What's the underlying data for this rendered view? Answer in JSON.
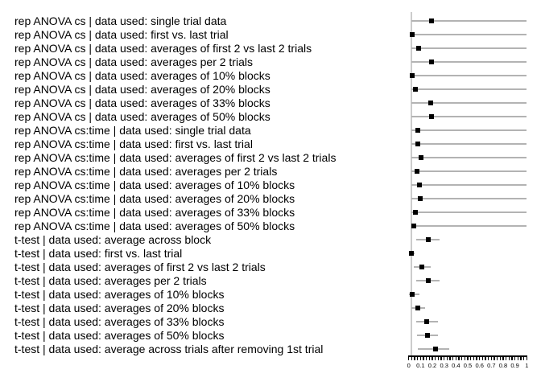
{
  "chart_data": {
    "type": "scatter",
    "subtype": "forest-plot",
    "orientation": "horizontal",
    "title": "",
    "xlabel": "",
    "ylabel": "",
    "xlim": [
      0,
      1
    ],
    "grid": false,
    "legend": "none",
    "x_tick_labels": [
      "0",
      "0.1",
      "0.2",
      "0.3",
      "0.4",
      "0.5",
      "0.6",
      "0.7",
      "0.8",
      "0.9",
      "1"
    ],
    "x_tick_values": [
      0,
      0.1,
      0.2,
      0.3,
      0.4,
      0.5,
      0.6,
      0.7,
      0.8,
      0.9,
      1
    ],
    "minor_tick_step": 0.025,
    "rows": [
      {
        "label": "rep ANOVA cs | data used: single trial data",
        "est": 0.19,
        "lo": 0.02,
        "hi": 1.0
      },
      {
        "label": "rep ANOVA cs | data used: first vs. last trial",
        "est": 0.03,
        "lo": 0.02,
        "hi": 1.0
      },
      {
        "label": "rep ANOVA cs | data used: averages of first 2 vs last 2 trials",
        "est": 0.085,
        "lo": 0.02,
        "hi": 1.0
      },
      {
        "label": "rep ANOVA cs | data used: averages per 2 trials",
        "est": 0.19,
        "lo": 0.02,
        "hi": 1.0
      },
      {
        "label": "rep ANOVA cs | data used: averages of 10% blocks",
        "est": 0.03,
        "lo": 0.02,
        "hi": 1.0
      },
      {
        "label": "rep ANOVA cs | data used: averages of 20% blocks",
        "est": 0.06,
        "lo": 0.02,
        "hi": 1.0
      },
      {
        "label": "rep ANOVA cs | data used: averages of 33% blocks",
        "est": 0.185,
        "lo": 0.02,
        "hi": 1.0
      },
      {
        "label": "rep ANOVA cs | data used: averages of 50% blocks",
        "est": 0.19,
        "lo": 0.02,
        "hi": 1.0
      },
      {
        "label": "rep ANOVA cs:time | data used: single trial data",
        "est": 0.075,
        "lo": 0.02,
        "hi": 1.0
      },
      {
        "label": "rep ANOVA cs:time | data used: first vs. last trial",
        "est": 0.08,
        "lo": 0.02,
        "hi": 1.0
      },
      {
        "label": "rep ANOVA cs:time | data used: averages of first 2 vs last 2 trials",
        "est": 0.105,
        "lo": 0.02,
        "hi": 1.0
      },
      {
        "label": "rep ANOVA cs:time | data used: averages per 2 trials",
        "est": 0.07,
        "lo": 0.02,
        "hi": 1.0
      },
      {
        "label": "rep ANOVA cs:time | data used: averages of 10% blocks",
        "est": 0.09,
        "lo": 0.02,
        "hi": 1.0
      },
      {
        "label": "rep ANOVA cs:time | data used: averages of 20% blocks",
        "est": 0.095,
        "lo": 0.02,
        "hi": 1.0
      },
      {
        "label": "rep ANOVA cs:time | data used: averages of 33% blocks",
        "est": 0.055,
        "lo": 0.02,
        "hi": 1.0
      },
      {
        "label": "rep ANOVA cs:time | data used: averages of 50% blocks",
        "est": 0.045,
        "lo": 0.02,
        "hi": 1.0
      },
      {
        "label": "t-test | data used: average across block",
        "est": 0.165,
        "lo": 0.065,
        "hi": 0.26
      },
      {
        "label": "t-test | data used: first vs. last trial",
        "est": 0.025,
        "lo": 0.005,
        "hi": 0.05
      },
      {
        "label": "t-test | data used: averages of first 2 vs last 2 trials",
        "est": 0.11,
        "lo": 0.04,
        "hi": 0.185
      },
      {
        "label": "t-test | data used: averages per 2 trials",
        "est": 0.165,
        "lo": 0.065,
        "hi": 0.26
      },
      {
        "label": "t-test | data used: averages of 10% blocks",
        "est": 0.03,
        "lo": 0.005,
        "hi": 0.09
      },
      {
        "label": "t-test | data used: averages of 20% blocks",
        "est": 0.08,
        "lo": 0.025,
        "hi": 0.14
      },
      {
        "label": "t-test | data used: averages of 33% blocks",
        "est": 0.15,
        "lo": 0.065,
        "hi": 0.245
      },
      {
        "label": "t-test | data used: averages of 50% blocks",
        "est": 0.16,
        "lo": 0.07,
        "hi": 0.25
      },
      {
        "label": "t-test | data used: average across trials after removing 1st trial",
        "est": 0.225,
        "lo": 0.075,
        "hi": 0.345
      }
    ]
  },
  "colors": {
    "background": "#ffffff",
    "point": "#000000",
    "whisker": "#b3b3b3",
    "panel_axis_line": "#cccccc",
    "tick": "#000000",
    "text": "#000000"
  }
}
